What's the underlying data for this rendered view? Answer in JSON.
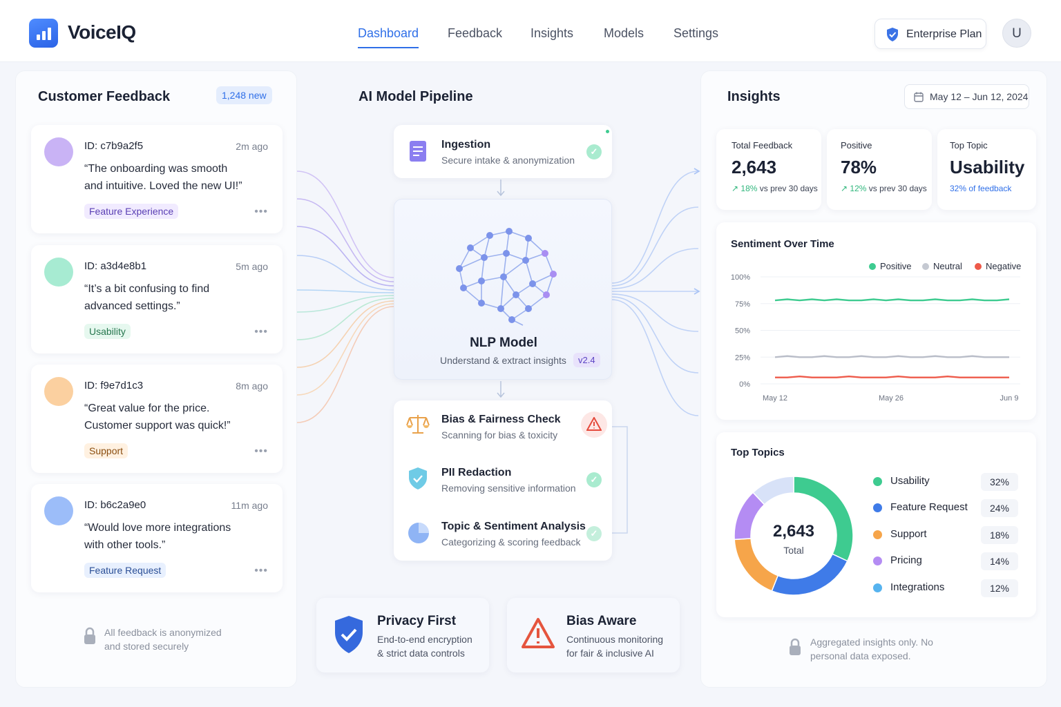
{
  "app": {
    "name": "VoiceIQ"
  },
  "nav": {
    "items": [
      "Dashboard",
      "Feedback",
      "Insights",
      "Models",
      "Settings"
    ]
  },
  "plan": {
    "label": "Enterprise Plan"
  },
  "user": {
    "initial": "U"
  },
  "feedback_panel": {
    "title": "Customer Feedback",
    "new_badge": "1,248 new",
    "items": [
      {
        "id": "ID: c7b9a2f5",
        "time": "2m ago",
        "quote": "“The onboarding was smooth and intuitive. Loved the new UI!”",
        "tag": "Feature Experience",
        "color": "#c9b3f5",
        "tag_bg": "#f1ebff",
        "tag_fg": "#5a3fb3"
      },
      {
        "id": "ID: a3d4e8b1",
        "time": "5m ago",
        "quote": "“It’s a bit confusing to find advanced settings.”",
        "tag": "Usability",
        "color": "#a7ebd2",
        "tag_bg": "#e6f8ef",
        "tag_fg": "#27774f"
      },
      {
        "id": "ID: f9e7d1c3",
        "time": "8m ago",
        "quote": "“Great value for the price. Customer support was quick!”",
        "tag": "Support",
        "color": "#fbd0a0",
        "tag_bg": "#fff1e1",
        "tag_fg": "#8a4e10"
      },
      {
        "id": "ID: b6c2a9e0",
        "time": "11m ago",
        "quote": "“Would love more integrations with other tools.”",
        "tag": "Feature Request",
        "color": "#9cbdf9",
        "tag_bg": "#e8f0fe",
        "tag_fg": "#2b4f96"
      }
    ],
    "footer": "All feedback is anonymized and stored securely"
  },
  "pipeline": {
    "title": "AI Model Pipeline",
    "ingestion": {
      "title": "Ingestion",
      "subtitle": "Secure intake & anonymization"
    },
    "model": {
      "title": "NLP Model",
      "subtitle": "Understand & extract insights",
      "version": "v2.4"
    },
    "checks": [
      {
        "title": "Bias & Fairness Check",
        "subtitle": "Scanning for bias & toxicity",
        "icon": "scales-icon",
        "status": "warning"
      },
      {
        "title": "PII Redaction",
        "subtitle": "Removing sensitive information",
        "icon": "shield-icon",
        "status": "ok"
      },
      {
        "title": "Topic & Sentiment Analysis",
        "subtitle": "Categorizing & scoring feedback",
        "icon": "pie-icon",
        "status": "ok"
      }
    ],
    "privacy": {
      "title": "Privacy First",
      "text": "End-to-end encryption & strict data controls"
    },
    "bias": {
      "title": "Bias Aware",
      "text": "Continuous monitoring for fair & inclusive AI"
    }
  },
  "insights": {
    "title": "Insights",
    "date_range": "May 12 – Jun 12, 2024",
    "stats": [
      {
        "label": "Total Feedback",
        "value": "2,643",
        "delta": "18%",
        "delta_note": " vs prev 30 days"
      },
      {
        "label": "Positive",
        "value": "78%",
        "delta": "12%",
        "delta_note": " vs prev 30 days"
      },
      {
        "label": "Top Topic",
        "value": "Usability",
        "delta": "32% of feedback",
        "delta_note": ""
      }
    ],
    "sentiment": {
      "title": "Sentiment Over Time",
      "legend": [
        "Positive",
        "Neutral",
        "Negative"
      ]
    },
    "topics": {
      "title": "Top Topics",
      "total": "2,643",
      "total_label": "Total",
      "items": [
        {
          "name": "Usability",
          "pct": "32%",
          "value": 32,
          "color": "#3ecb90"
        },
        {
          "name": "Feature Request",
          "pct": "24%",
          "value": 24,
          "color": "#3f7be8"
        },
        {
          "name": "Support",
          "pct": "18%",
          "value": 18,
          "color": "#f6a54a"
        },
        {
          "name": "Pricing",
          "pct": "14%",
          "value": 14,
          "color": "#b48cf3"
        },
        {
          "name": "Integrations",
          "pct": "12%",
          "value": 12,
          "color": "#56b3ef"
        }
      ]
    },
    "footer": "Aggregated insights only. No personal data exposed."
  },
  "chart_data": {
    "type": "line",
    "title": "Sentiment Over Time",
    "xlabel": "",
    "ylabel": "",
    "x_tick_labels": [
      "May 12",
      "May 26",
      "Jun 9"
    ],
    "y_tick_labels": [
      "100%",
      "75%",
      "50%",
      "25%",
      "0%"
    ],
    "ylim": [
      0,
      100
    ],
    "legend": "top-right",
    "series": [
      {
        "name": "Positive",
        "color": "#3ecb90",
        "values": [
          78,
          79,
          78,
          79,
          78,
          79,
          78,
          78,
          79,
          78,
          79,
          78,
          78,
          79,
          78,
          78,
          79,
          78,
          78,
          79
        ]
      },
      {
        "name": "Neutral",
        "color": "#b9bdc8",
        "values": [
          25,
          26,
          25,
          25,
          26,
          25,
          25,
          26,
          25,
          25,
          26,
          25,
          25,
          26,
          25,
          25,
          26,
          25,
          25,
          25
        ]
      },
      {
        "name": "Negative",
        "color": "#ee5a4a",
        "values": [
          6,
          6,
          7,
          6,
          6,
          6,
          7,
          6,
          6,
          6,
          7,
          6,
          6,
          6,
          7,
          6,
          6,
          6,
          6,
          6
        ]
      }
    ]
  }
}
